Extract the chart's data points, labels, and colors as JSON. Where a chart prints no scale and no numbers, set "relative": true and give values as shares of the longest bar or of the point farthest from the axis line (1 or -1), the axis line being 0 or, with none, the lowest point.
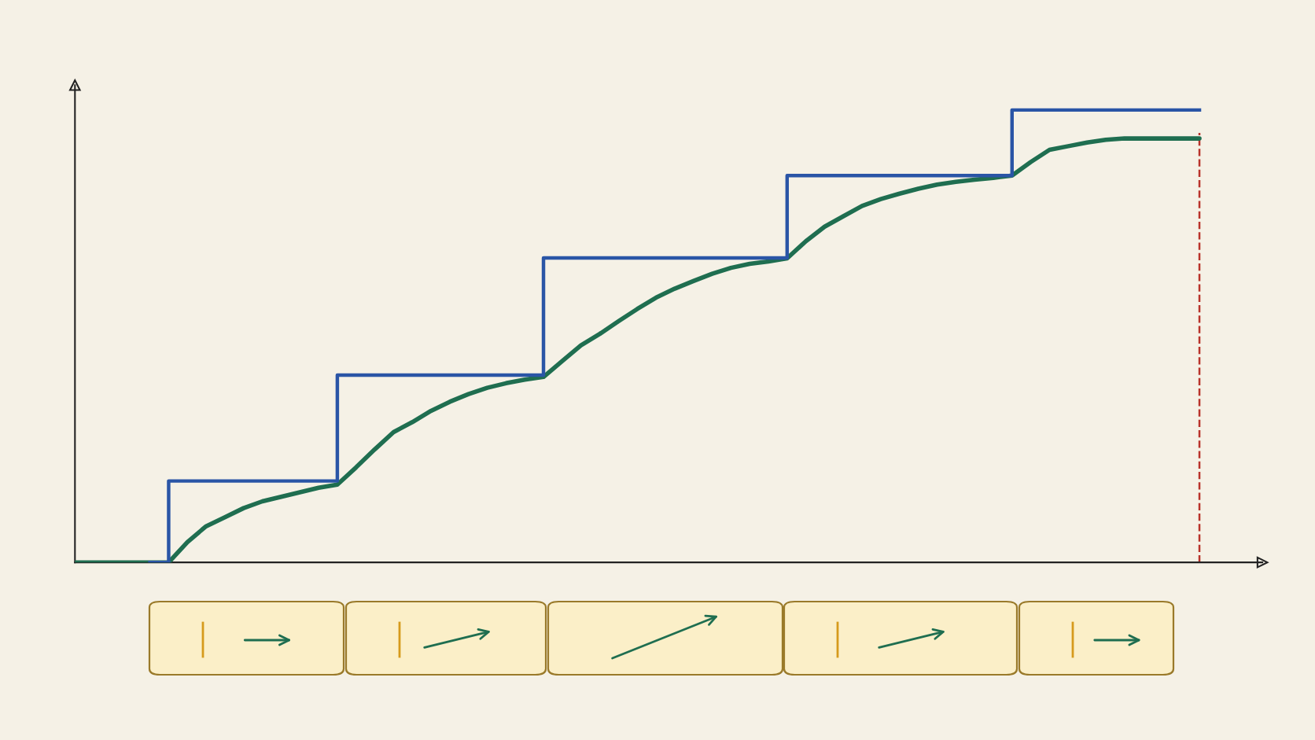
{
  "chart_data": {
    "type": "step",
    "relative": true,
    "categories": [
      null,
      null,
      null,
      null,
      null,
      null,
      null,
      null,
      null,
      null,
      null,
      null,
      null,
      null,
      null,
      null,
      null,
      null,
      null,
      null,
      null,
      null,
      null,
      null,
      null,
      null,
      null,
      null,
      null,
      null,
      null,
      null,
      null,
      null,
      null,
      null,
      null,
      null,
      null,
      null,
      null,
      null,
      null,
      null,
      null,
      null,
      null,
      null,
      null,
      null,
      null,
      null,
      null,
      null,
      null,
      null,
      null,
      null,
      null,
      null,
      null
    ],
    "series": [
      {
        "color": "#2a55a6",
        "values": [
          null,
          null,
          null,
          null,
          0,
          0.18,
          0.18,
          0.18,
          0.18,
          0.18,
          0.18,
          0.18,
          0.18,
          0.18,
          0.414,
          0.414,
          0.414,
          0.414,
          0.414,
          0.414,
          0.414,
          0.414,
          0.414,
          0.414,
          0.414,
          0.673,
          0.673,
          0.673,
          0.673,
          0.673,
          0.673,
          0.673,
          0.673,
          0.673,
          0.673,
          0.673,
          0.673,
          0.673,
          0.855,
          0.855,
          0.855,
          0.855,
          0.855,
          0.855,
          0.855,
          0.855,
          0.855,
          0.855,
          0.855,
          0.855,
          1.0,
          1.0,
          1.0,
          1.0,
          1.0,
          1.0,
          1.0,
          1.0,
          1.0,
          1.0,
          1.0
        ]
      },
      {
        "type": "line",
        "color": "#1f6e50",
        "values": [
          0,
          0,
          0,
          0,
          0,
          0,
          0.045,
          0.08,
          0.1,
          0.12,
          0.135,
          0.145,
          0.155,
          0.165,
          0.172,
          0.21,
          0.25,
          0.288,
          0.31,
          0.335,
          0.355,
          0.372,
          0.386,
          0.396,
          0.404,
          0.41,
          0.445,
          0.48,
          0.505,
          0.533,
          0.56,
          0.585,
          0.605,
          0.622,
          0.638,
          0.651,
          0.66,
          0.665,
          0.672,
          0.71,
          0.742,
          0.765,
          0.788,
          0.803,
          0.815,
          0.826,
          0.835,
          0.841,
          0.846,
          0.85,
          0.855,
          0.885,
          0.912,
          0.92,
          0.928,
          0.934,
          0.937,
          0.937,
          0.937,
          0.937,
          0.937
        ]
      }
    ]
  }
}
